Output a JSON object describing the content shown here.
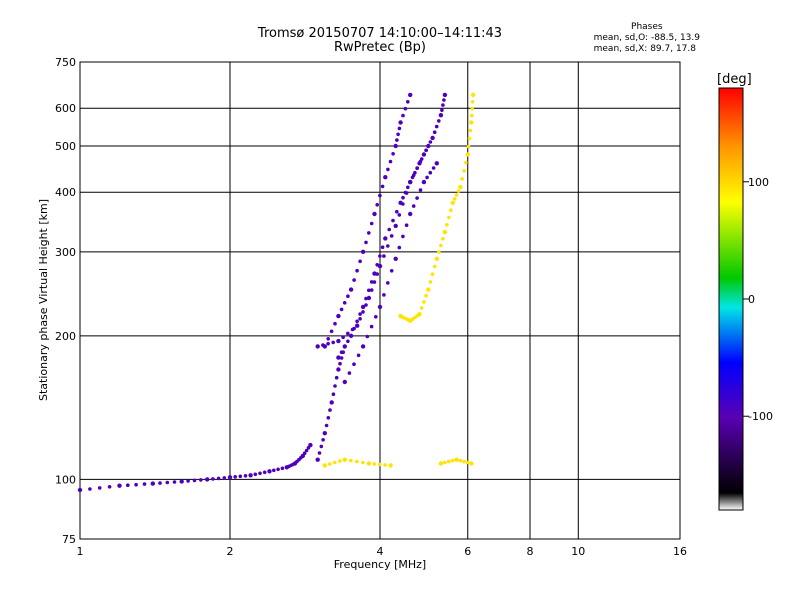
{
  "chart_data": {
    "type": "scatter",
    "title": "Tromsø 20150707 14:10:00–14:11:43",
    "subtitle": "RwPretec (Bp)",
    "xlabel": "Frequency [MHz]",
    "ylabel": "Stationary phase Virtual Height [km]",
    "xscale": "log",
    "yscale": "log",
    "xlim": [
      1,
      16
    ],
    "ylim": [
      75,
      750
    ],
    "x_ticks": [
      1,
      2,
      4,
      6,
      8,
      10,
      16
    ],
    "y_ticks": [
      75,
      100,
      200,
      300,
      400,
      500,
      600,
      750
    ],
    "grid": true,
    "stats": {
      "heading": "Phases",
      "line1": "mean, sd,O: -88.5, 13.9",
      "line2": "mean, sd,X:  89.7, 17.8"
    },
    "colorbar": {
      "unit": "[deg]",
      "range": [
        -180,
        180
      ],
      "ticks": [
        100,
        0,
        -100
      ]
    },
    "series": [
      {
        "phase_deg": -95,
        "traces": [
          [
            [
              1.0,
              95
            ],
            [
              1.2,
              97
            ],
            [
              1.4,
              98
            ],
            [
              1.6,
              99
            ],
            [
              1.8,
              100
            ],
            [
              2.0,
              101
            ],
            [
              2.2,
              102
            ],
            [
              2.4,
              104
            ],
            [
              2.6,
              106
            ],
            [
              2.7,
              108
            ],
            [
              2.8,
              112
            ],
            [
              2.9,
              118
            ]
          ],
          [
            [
              3.0,
              190
            ],
            [
              3.3,
              195
            ],
            [
              3.6,
              210
            ],
            [
              3.8,
              240
            ],
            [
              4.0,
              280
            ],
            [
              4.3,
              340
            ],
            [
              4.6,
              420
            ],
            [
              4.9,
              480
            ],
            [
              5.1,
              520
            ],
            [
              5.3,
              580
            ],
            [
              5.4,
              640
            ]
          ],
          [
            [
              3.3,
              180
            ],
            [
              3.5,
              200
            ],
            [
              3.7,
              230
            ],
            [
              3.9,
              270
            ],
            [
              4.1,
              320
            ],
            [
              4.4,
              380
            ],
            [
              4.6,
              420
            ],
            [
              4.8,
              460
            ],
            [
              5.0,
              500
            ]
          ],
          [
            [
              3.1,
              190
            ],
            [
              3.3,
              220
            ],
            [
              3.5,
              250
            ],
            [
              3.7,
              300
            ],
            [
              3.9,
              360
            ],
            [
              4.1,
              430
            ],
            [
              4.3,
              500
            ],
            [
              4.4,
              560
            ],
            [
              4.6,
              640
            ]
          ],
          [
            [
              3.4,
              160
            ],
            [
              3.7,
              190
            ],
            [
              4.0,
              230
            ],
            [
              4.3,
              290
            ],
            [
              4.6,
              360
            ],
            [
              4.9,
              420
            ],
            [
              5.2,
              460
            ]
          ],
          [
            [
              3.0,
              110
            ],
            [
              3.1,
              125
            ],
            [
              3.2,
              145
            ],
            [
              3.3,
              170
            ],
            [
              3.4,
              190
            ]
          ]
        ]
      },
      {
        "phase_deg": 95,
        "traces": [
          [
            [
              3.1,
              107
            ],
            [
              3.4,
              110
            ],
            [
              3.8,
              108
            ],
            [
              4.2,
              107
            ]
          ],
          [
            [
              4.4,
              220
            ],
            [
              4.6,
              215
            ],
            [
              4.8,
              222
            ],
            [
              5.0,
              250
            ],
            [
              5.2,
              290
            ],
            [
              5.4,
              330
            ],
            [
              5.6,
              380
            ],
            [
              5.8,
              410
            ],
            [
              6.0,
              480
            ],
            [
              6.1,
              560
            ],
            [
              6.15,
              640
            ]
          ],
          [
            [
              5.3,
              108
            ],
            [
              5.7,
              110
            ],
            [
              6.1,
              108
            ]
          ]
        ]
      }
    ]
  }
}
